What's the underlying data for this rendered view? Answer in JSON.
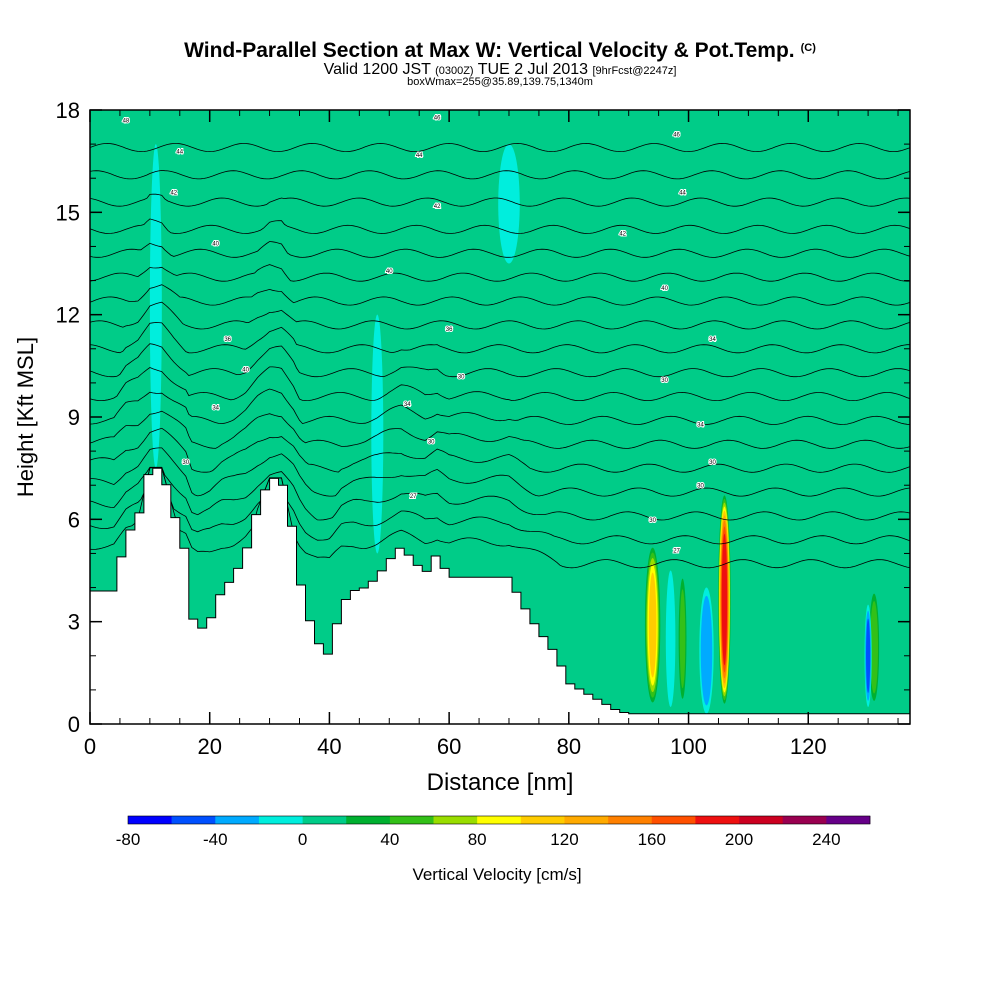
{
  "header": {
    "title": "Wind-Parallel Section at Max W: Vertical Velocity & Pot.Temp.",
    "copyright_mark": "(C)",
    "valid_prefix": "Valid 1200 JST",
    "valid_zulu": "(0300Z)",
    "valid_date": "TUE 2 Jul 2013",
    "forecast_info": "[9hrFcst@2247z]",
    "box_info": "boxWmax=255@35.89,139.75,1340m"
  },
  "chart_data": {
    "type": "heatmap",
    "title": "Wind-Parallel Section at Max W: Vertical Velocity & Pot.Temp.",
    "xlabel": "Distance [nm]",
    "ylabel": "Height [Kft MSL]",
    "xlim": [
      0,
      137
    ],
    "ylim": [
      0,
      18
    ],
    "x_ticks": [
      0,
      20,
      40,
      60,
      80,
      100,
      120
    ],
    "y_ticks": [
      0,
      3,
      6,
      9,
      12,
      15,
      18
    ],
    "x_minor_step": 5,
    "y_minor_step": 1,
    "colorbar": {
      "label": "Vertical Velocity [cm/s]",
      "bounds": [
        -80,
        260
      ],
      "step": 20,
      "tick_labels": [
        "-80",
        "-40",
        "0",
        "40",
        "80",
        "120",
        "160",
        "200",
        "240"
      ],
      "colors": [
        "#0000ff",
        "#0050ff",
        "#00aaff",
        "#00eedd",
        "#00cc88",
        "#00b030",
        "#33c018",
        "#99dd00",
        "#ffff00",
        "#ffcc00",
        "#ffaa00",
        "#ff8000",
        "#ff5000",
        "#ee1010",
        "#cc0020",
        "#990050",
        "#660088"
      ]
    },
    "background_value": 0,
    "terrain_profile": {
      "x": [
        0,
        2,
        4,
        6,
        8,
        10,
        12,
        14,
        16,
        17,
        18,
        20,
        22,
        24,
        26,
        28,
        30,
        32,
        34,
        35,
        36,
        38,
        40,
        42,
        44,
        46,
        48,
        50,
        52,
        54,
        56,
        58,
        60,
        62,
        66,
        70,
        72,
        74,
        76,
        78,
        80,
        82,
        84,
        86,
        88,
        90,
        137
      ],
      "height": [
        3.9,
        3.9,
        3.9,
        5.5,
        6.0,
        7.5,
        7.5,
        6.2,
        5.0,
        3.2,
        2.7,
        3.0,
        3.9,
        4.3,
        5.0,
        6.3,
        7.2,
        7.2,
        5.6,
        4.3,
        3.4,
        2.4,
        2.0,
        3.5,
        3.9,
        4.0,
        4.3,
        4.8,
        5.2,
        4.8,
        4.4,
        5.0,
        4.3,
        4.3,
        4.3,
        4.3,
        3.6,
        3.0,
        2.5,
        2.0,
        1.2,
        1.0,
        0.8,
        0.6,
        0.4,
        0.3,
        0.3
      ]
    },
    "vertical_velocity_features": [
      {
        "x": 94,
        "z_bottom": 0.5,
        "z_top": 5.3,
        "peak": 125,
        "half_width": 1.4
      },
      {
        "x": 106,
        "z_bottom": 0.5,
        "z_top": 6.8,
        "peak": 215,
        "half_width": 1.1
      },
      {
        "x": 99,
        "z_bottom": 0.5,
        "z_top": 4.5,
        "peak": 60,
        "half_width": 0.8
      },
      {
        "x": 103,
        "z_bottom": 0.3,
        "z_top": 4.0,
        "peak": -55,
        "half_width": 1.2
      },
      {
        "x": 97,
        "z_bottom": 0.5,
        "z_top": 4.5,
        "peak": -30,
        "half_width": 0.8
      },
      {
        "x": 131,
        "z_bottom": 0.5,
        "z_top": 4.0,
        "peak": 70,
        "half_width": 1.0
      },
      {
        "x": 130,
        "z_bottom": 0.5,
        "z_top": 3.5,
        "peak": -60,
        "half_width": 0.6
      },
      {
        "x": 13,
        "z_bottom": 7.5,
        "z_top": 17.5,
        "peak": 35,
        "half_width": 1.2
      },
      {
        "x": 11,
        "z_bottom": 7.5,
        "z_top": 17.0,
        "peak": -35,
        "half_width": 1.0
      },
      {
        "x": 33,
        "z_bottom": 7.0,
        "z_top": 16.5,
        "peak": 30,
        "half_width": 1.5
      },
      {
        "x": 56,
        "z_bottom": 4.5,
        "z_top": 16.0,
        "peak": 28,
        "half_width": 1.2
      },
      {
        "x": 48,
        "z_bottom": 5.0,
        "z_top": 12.0,
        "peak": -30,
        "half_width": 1.0
      },
      {
        "x": 70,
        "z_bottom": 13.5,
        "z_top": 17.0,
        "peak": -35,
        "half_width": 1.8
      },
      {
        "x": 70,
        "z_bottom": 7.5,
        "z_top": 11.0,
        "peak": 25,
        "half_width": 1.5
      },
      {
        "x": 60,
        "z_bottom": 4.5,
        "z_top": 17.8,
        "peak": 20,
        "half_width": 6.0
      },
      {
        "x": 110,
        "z_bottom": 7.0,
        "z_top": 17.8,
        "peak": 20,
        "half_width": 2.5
      },
      {
        "x": 125,
        "z_bottom": 6.0,
        "z_top": 17.8,
        "peak": 18,
        "half_width": 2.5
      }
    ],
    "isentropes": {
      "count": 18,
      "levels_ft": [
        16.9,
        16.1,
        15.3,
        14.5,
        13.8,
        13.1,
        12.4,
        11.7,
        11.0,
        10.3,
        9.6,
        8.9,
        8.2,
        7.5,
        6.8,
        6.1,
        5.4,
        4.7
      ],
      "labels": [
        {
          "x": 6,
          "z": 17.7,
          "text": "48"
        },
        {
          "x": 58,
          "z": 17.8,
          "text": "46"
        },
        {
          "x": 98,
          "z": 17.3,
          "text": "46"
        },
        {
          "x": 15,
          "z": 16.8,
          "text": "44"
        },
        {
          "x": 55,
          "z": 16.7,
          "text": "44"
        },
        {
          "x": 99,
          "z": 15.6,
          "text": "44"
        },
        {
          "x": 14,
          "z": 15.6,
          "text": "42"
        },
        {
          "x": 58,
          "z": 15.2,
          "text": "42"
        },
        {
          "x": 89,
          "z": 14.4,
          "text": "42"
        },
        {
          "x": 21,
          "z": 14.1,
          "text": "40"
        },
        {
          "x": 50,
          "z": 13.3,
          "text": "40"
        },
        {
          "x": 96,
          "z": 12.8,
          "text": "40"
        },
        {
          "x": 23,
          "z": 11.3,
          "text": "36"
        },
        {
          "x": 60,
          "z": 11.6,
          "text": "36"
        },
        {
          "x": 104,
          "z": 11.3,
          "text": "34"
        },
        {
          "x": 26,
          "z": 10.4,
          "text": "40"
        },
        {
          "x": 62,
          "z": 10.2,
          "text": "30"
        },
        {
          "x": 96,
          "z": 10.1,
          "text": "30"
        },
        {
          "x": 21,
          "z": 9.3,
          "text": "34"
        },
        {
          "x": 53,
          "z": 9.4,
          "text": "34"
        },
        {
          "x": 102,
          "z": 8.8,
          "text": "34"
        },
        {
          "x": 16,
          "z": 7.7,
          "text": "30"
        },
        {
          "x": 57,
          "z": 8.3,
          "text": "30"
        },
        {
          "x": 104,
          "z": 7.7,
          "text": "30"
        },
        {
          "x": 54,
          "z": 6.7,
          "text": "27"
        },
        {
          "x": 102,
          "z": 7.0,
          "text": "30"
        },
        {
          "x": 94,
          "z": 6.0,
          "text": "30"
        },
        {
          "x": 98,
          "z": 5.1,
          "text": "27"
        }
      ]
    }
  }
}
